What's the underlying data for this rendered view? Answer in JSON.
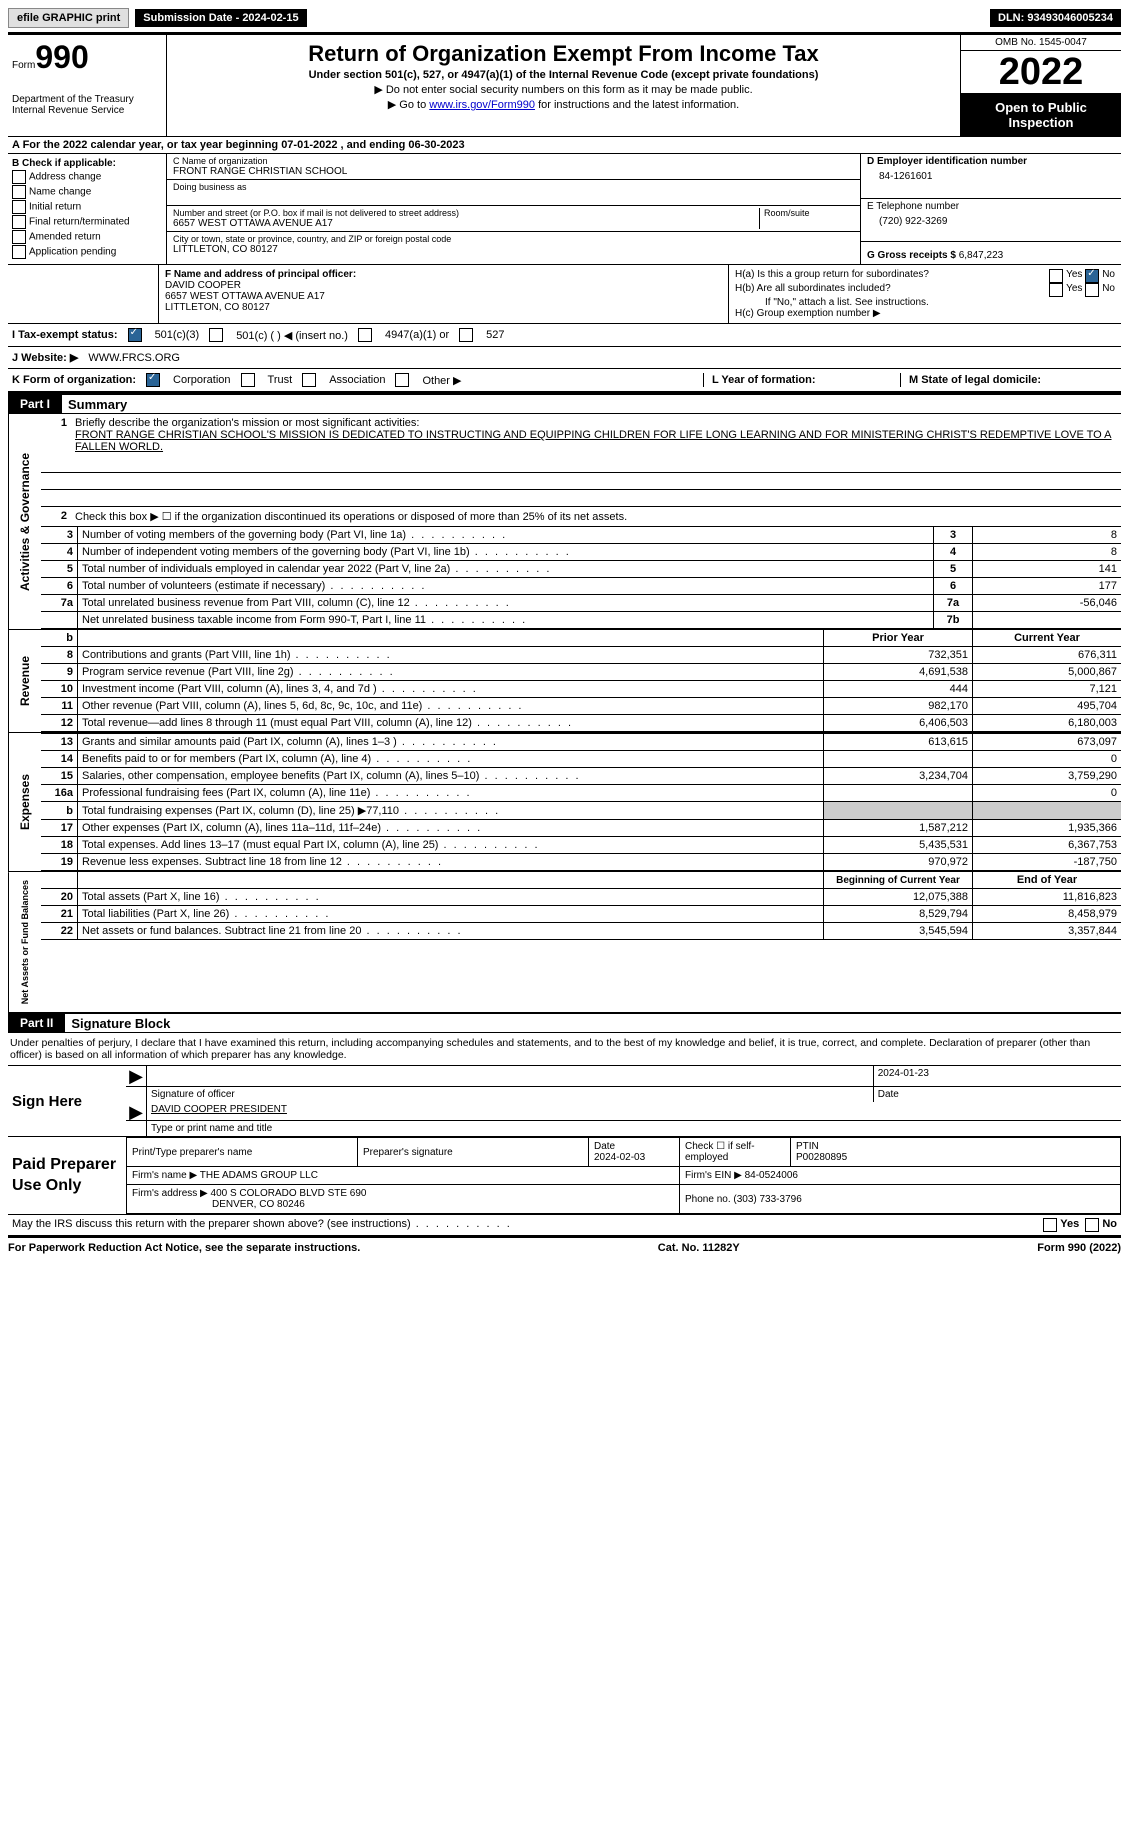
{
  "topBar": {
    "efile": "efile GRAPHIC print",
    "subDate": "Submission Date - 2024-02-15",
    "dln": "DLN: 93493046005234"
  },
  "header": {
    "formWord": "Form",
    "formNum": "990",
    "dept": "Department of the Treasury",
    "irs": "Internal Revenue Service",
    "title": "Return of Organization Exempt From Income Tax",
    "sub": "Under section 501(c), 527, or 4947(a)(1) of the Internal Revenue Code (except private foundations)",
    "note1": "▶ Do not enter social security numbers on this form as it may be made public.",
    "note2pre": "▶ Go to ",
    "note2link": "www.irs.gov/Form990",
    "note2post": " for instructions and the latest information.",
    "omb": "OMB No. 1545-0047",
    "year": "2022",
    "open": "Open to Public Inspection"
  },
  "rowA": "A For the 2022 calendar year, or tax year beginning 07-01-2022    , and ending 06-30-2023",
  "B": {
    "title": "B Check if applicable:",
    "opts": [
      "Address change",
      "Name change",
      "Initial return",
      "Final return/terminated",
      "Amended return",
      "Application pending"
    ]
  },
  "C": {
    "nameLbl": "C Name of organization",
    "name": "FRONT RANGE CHRISTIAN SCHOOL",
    "dba": "Doing business as",
    "streetLbl": "Number and street (or P.O. box if mail is not delivered to street address)",
    "roomLbl": "Room/suite",
    "street": "6657 WEST OTTAWA AVENUE A17",
    "cityLbl": "City or town, state or province, country, and ZIP or foreign postal code",
    "city": "LITTLETON, CO  80127"
  },
  "D": {
    "lbl": "D Employer identification number",
    "val": "84-1261601"
  },
  "E": {
    "lbl": "E Telephone number",
    "val": "(720) 922-3269"
  },
  "G": {
    "lbl": "G Gross receipts $",
    "val": "6,847,223"
  },
  "F": {
    "lbl": "F Name and address of principal officer:",
    "name": "DAVID COOPER",
    "addr1": "6657 WEST OTTAWA AVENUE A17",
    "addr2": "LITTLETON, CO  80127"
  },
  "H": {
    "a": "H(a)  Is this a group return for subordinates?",
    "b": "H(b)  Are all subordinates included?",
    "bnote": "If \"No,\" attach a list. See instructions.",
    "c": "H(c)  Group exemption number ▶"
  },
  "I": {
    "lbl": "I   Tax-exempt status:",
    "o1": "501(c)(3)",
    "o2": "501(c) (  ) ◀ (insert no.)",
    "o3": "4947(a)(1) or",
    "o4": "527"
  },
  "J": {
    "lbl": "J   Website: ▶",
    "val": "WWW.FRCS.ORG"
  },
  "K": {
    "lbl": "K Form of organization:",
    "o1": "Corporation",
    "o2": "Trust",
    "o3": "Association",
    "o4": "Other ▶"
  },
  "L": "L Year of formation:",
  "M": "M State of legal domicile:",
  "part1": {
    "hdr": "Part I",
    "title": "Summary"
  },
  "summary": {
    "q1": "Briefly describe the organization's mission or most significant activities:",
    "mission": "FRONT RANGE CHRISTIAN SCHOOL'S MISSION IS DEDICATED TO INSTRUCTING AND EQUIPPING CHILDREN FOR LIFE LONG LEARNING AND FOR MINISTERING CHRIST'S REDEMPTIVE LOVE TO A FALLEN WORLD.",
    "q2": "Check this box ▶ ☐  if the organization discontinued its operations or disposed of more than 25% of its net assets.",
    "rows": [
      {
        "n": "3",
        "d": "Number of voting members of the governing body (Part VI, line 1a)",
        "r": "3",
        "v": "8"
      },
      {
        "n": "4",
        "d": "Number of independent voting members of the governing body (Part VI, line 1b)",
        "r": "4",
        "v": "8"
      },
      {
        "n": "5",
        "d": "Total number of individuals employed in calendar year 2022 (Part V, line 2a)",
        "r": "5",
        "v": "141"
      },
      {
        "n": "6",
        "d": "Total number of volunteers (estimate if necessary)",
        "r": "6",
        "v": "177"
      },
      {
        "n": "7a",
        "d": "Total unrelated business revenue from Part VIII, column (C), line 12",
        "r": "7a",
        "v": "-56,046"
      },
      {
        "n": "",
        "d": "Net unrelated business taxable income from Form 990-T, Part I, line 11",
        "r": "7b",
        "v": ""
      }
    ]
  },
  "revHdr": {
    "prior": "Prior Year",
    "curr": "Current Year"
  },
  "revenue": [
    {
      "n": "8",
      "d": "Contributions and grants (Part VIII, line 1h)",
      "p": "732,351",
      "c": "676,311"
    },
    {
      "n": "9",
      "d": "Program service revenue (Part VIII, line 2g)",
      "p": "4,691,538",
      "c": "5,000,867"
    },
    {
      "n": "10",
      "d": "Investment income (Part VIII, column (A), lines 3, 4, and 7d )",
      "p": "444",
      "c": "7,121"
    },
    {
      "n": "11",
      "d": "Other revenue (Part VIII, column (A), lines 5, 6d, 8c, 9c, 10c, and 11e)",
      "p": "982,170",
      "c": "495,704"
    },
    {
      "n": "12",
      "d": "Total revenue—add lines 8 through 11 (must equal Part VIII, column (A), line 12)",
      "p": "6,406,503",
      "c": "6,180,003"
    }
  ],
  "expenses": [
    {
      "n": "13",
      "d": "Grants and similar amounts paid (Part IX, column (A), lines 1–3 )",
      "p": "613,615",
      "c": "673,097"
    },
    {
      "n": "14",
      "d": "Benefits paid to or for members (Part IX, column (A), line 4)",
      "p": "",
      "c": "0"
    },
    {
      "n": "15",
      "d": "Salaries, other compensation, employee benefits (Part IX, column (A), lines 5–10)",
      "p": "3,234,704",
      "c": "3,759,290"
    },
    {
      "n": "16a",
      "d": "Professional fundraising fees (Part IX, column (A), line 11e)",
      "p": "",
      "c": "0"
    },
    {
      "n": "b",
      "d": "Total fundraising expenses (Part IX, column (D), line 25) ▶77,110",
      "p": "SHADE",
      "c": "SHADE"
    },
    {
      "n": "17",
      "d": "Other expenses (Part IX, column (A), lines 11a–11d, 11f–24e)",
      "p": "1,587,212",
      "c": "1,935,366"
    },
    {
      "n": "18",
      "d": "Total expenses. Add lines 13–17 (must equal Part IX, column (A), line 25)",
      "p": "5,435,531",
      "c": "6,367,753"
    },
    {
      "n": "19",
      "d": "Revenue less expenses. Subtract line 18 from line 12",
      "p": "970,972",
      "c": "-187,750"
    }
  ],
  "netHdr": {
    "begin": "Beginning of Current Year",
    "end": "End of Year"
  },
  "net": [
    {
      "n": "20",
      "d": "Total assets (Part X, line 16)",
      "p": "12,075,388",
      "c": "11,816,823"
    },
    {
      "n": "21",
      "d": "Total liabilities (Part X, line 26)",
      "p": "8,529,794",
      "c": "8,458,979"
    },
    {
      "n": "22",
      "d": "Net assets or fund balances. Subtract line 21 from line 20",
      "p": "3,545,594",
      "c": "3,357,844"
    }
  ],
  "sideLabels": {
    "gov": "Activities & Governance",
    "rev": "Revenue",
    "exp": "Expenses",
    "net": "Net Assets or Fund Balances"
  },
  "part2": {
    "hdr": "Part II",
    "title": "Signature Block"
  },
  "penalty": "Under penalties of perjury, I declare that I have examined this return, including accompanying schedules and statements, and to the best of my knowledge and belief, it is true, correct, and complete. Declaration of preparer (other than officer) is based on all information of which preparer has any knowledge.",
  "sign": {
    "here": "Sign Here",
    "sigOff": "Signature of officer",
    "date": "Date",
    "dateVal": "2024-01-23",
    "name": "DAVID COOPER  PRESIDENT",
    "nameLbl": "Type or print name and title"
  },
  "prep": {
    "title": "Paid Preparer Use Only",
    "r1": {
      "c1": "Print/Type preparer's name",
      "c2": "Preparer's signature",
      "c3l": "Date",
      "c3v": "2024-02-03",
      "c4": "Check ☐ if self-employed",
      "c5l": "PTIN",
      "c5v": "P00280895"
    },
    "r2": {
      "c1": "Firm's name    ▶ THE ADAMS GROUP LLC",
      "c2": "Firm's EIN ▶ 84-0524006"
    },
    "r3": {
      "c1": "Firm's address ▶ 400 S COLORADO BLVD STE 690",
      "c2": "Phone no. (303) 733-3796"
    },
    "r3b": "DENVER, CO  80246"
  },
  "discuss": "May the IRS discuss this return with the preparer shown above? (see instructions)",
  "footer": {
    "left": "For Paperwork Reduction Act Notice, see the separate instructions.",
    "mid": "Cat. No. 11282Y",
    "right": "Form 990 (2022)"
  },
  "yes": "Yes",
  "no": "No"
}
